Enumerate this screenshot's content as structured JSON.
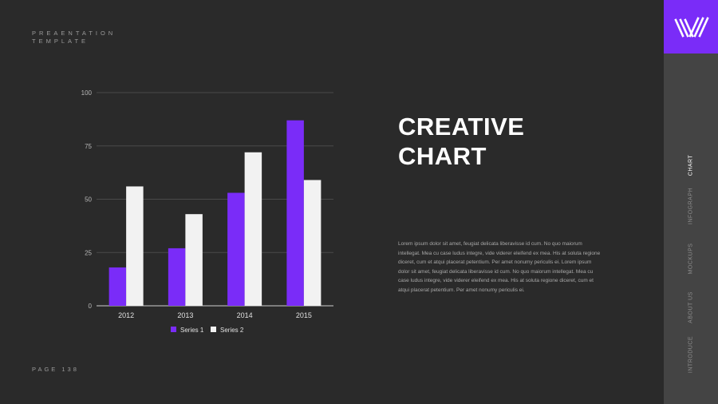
{
  "brand": {
    "line1": "PREAENTATION",
    "line2": "TEMPLATE"
  },
  "page_label": "PAGE  138",
  "title": {
    "line1": "CREATIVE",
    "line2": "CHART"
  },
  "body_text": "Lorem ipsum dolor sit amet, feugiat delicata liberavisse id cum. No quo maiorum intellegat. Mea cu case ludus integre, vide viderer eleifend ex mea. His at soluta regione diceret, cum et atqui placerat petentium. Per amet nonumy periculis ei. Lorem ipsum dolor sit amet, feugiat delicata liberavisse id cum. No quo maiorum intellegat. Mea cu case ludus integre, vide viderer eleifend ex mea. His at soluta regione diceret, cum et atqui placerat petentium. Per amet nonumy periculis ei.",
  "nav": {
    "items": [
      {
        "label": "CHART",
        "active": true
      },
      {
        "label": "INFOGRAPH",
        "active": false
      },
      {
        "label": "MOCKUPS",
        "active": false
      },
      {
        "label": "ABOUT US",
        "active": false
      },
      {
        "label": "INTRODUCE",
        "active": false
      }
    ]
  },
  "colors": {
    "accent": "#7a2cf8",
    "series2": "#f2f2f2",
    "background": "#2a2a2a",
    "sidebar": "#444444"
  },
  "chart_data": {
    "type": "bar",
    "categories": [
      "2012",
      "2013",
      "2014",
      "2015"
    ],
    "series": [
      {
        "name": "Series 1",
        "values": [
          18,
          27,
          53,
          87
        ],
        "color": "#7a2cf8"
      },
      {
        "name": "Series 2",
        "values": [
          56,
          43,
          72,
          59
        ],
        "color": "#f2f2f2"
      }
    ],
    "ylim": [
      0,
      100
    ],
    "yticks": [
      0,
      25,
      50,
      75,
      100
    ],
    "grid": true,
    "legend": "bottom"
  }
}
